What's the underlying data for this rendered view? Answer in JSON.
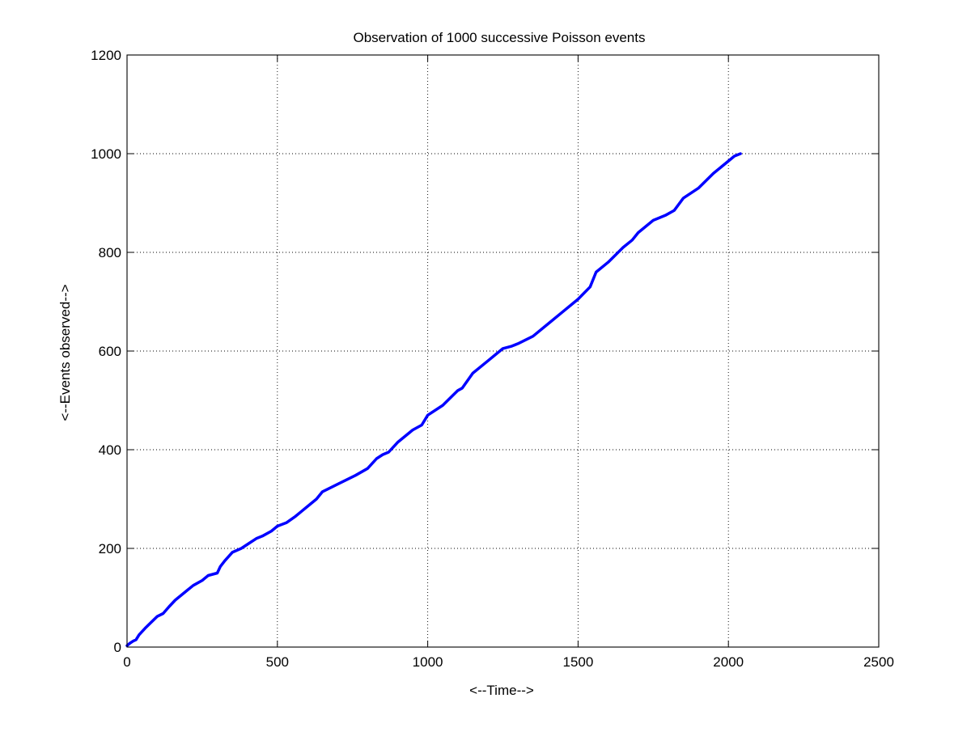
{
  "chart_data": {
    "type": "line",
    "title": "Observation of 1000 successive Poisson events",
    "xlabel": "<--Time-->",
    "ylabel": "<--Events observed-->",
    "xlim": [
      0,
      2500
    ],
    "ylim": [
      0,
      1200
    ],
    "xticks": [
      0,
      500,
      1000,
      1500,
      2000,
      2500
    ],
    "yticks": [
      0,
      200,
      400,
      600,
      800,
      1000,
      1200
    ],
    "xtick_labels": [
      "0",
      "500",
      "1000",
      "1500",
      "2000",
      "2500"
    ],
    "ytick_labels": [
      "0",
      "200",
      "400",
      "600",
      "800",
      "1000",
      "1200"
    ],
    "grid": true,
    "series_color": "#0000ff",
    "series": [
      {
        "name": "",
        "x": [
          0,
          10,
          20,
          30,
          40,
          60,
          80,
          100,
          120,
          140,
          160,
          200,
          220,
          250,
          270,
          300,
          310,
          325,
          350,
          380,
          405,
          430,
          450,
          480,
          500,
          530,
          560,
          580,
          600,
          630,
          650,
          700,
          760,
          800,
          830,
          850,
          870,
          900,
          950,
          980,
          1000,
          1050,
          1100,
          1115,
          1150,
          1200,
          1250,
          1280,
          1300,
          1350,
          1400,
          1450,
          1500,
          1540,
          1560,
          1600,
          1650,
          1680,
          1700,
          1750,
          1790,
          1820,
          1850,
          1900,
          1950,
          2000,
          2020,
          2040
        ],
        "y": [
          3,
          8,
          12,
          15,
          25,
          38,
          50,
          62,
          68,
          82,
          95,
          115,
          125,
          135,
          145,
          150,
          163,
          175,
          192,
          200,
          210,
          220,
          225,
          235,
          245,
          252,
          265,
          275,
          285,
          300,
          315,
          330,
          348,
          362,
          382,
          390,
          395,
          415,
          440,
          450,
          470,
          490,
          520,
          525,
          555,
          580,
          605,
          610,
          615,
          630,
          655,
          680,
          705,
          730,
          760,
          780,
          810,
          825,
          840,
          865,
          875,
          885,
          910,
          930,
          960,
          985,
          995,
          1000
        ]
      }
    ]
  }
}
